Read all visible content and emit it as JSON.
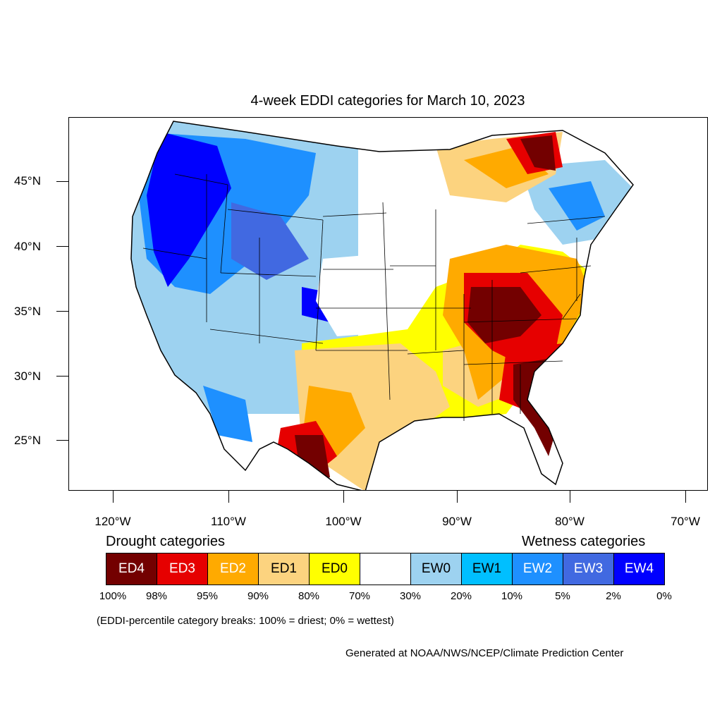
{
  "title": "4-week EDDI categories for March 10, 2023",
  "lat_labels": [
    "45°N",
    "40°N",
    "35°N",
    "30°N",
    "25°N"
  ],
  "lon_labels": [
    "120°W",
    "110°W",
    "100°W",
    "90°W",
    "80°W",
    "70°W"
  ],
  "legend": {
    "drought_heading": "Drought categories",
    "wetness_heading": "Wetness categories",
    "categories": [
      {
        "label": "ED4",
        "color": "#730000",
        "text_color": "#ffffff"
      },
      {
        "label": "ED3",
        "color": "#e60000",
        "text_color": "#ffffff"
      },
      {
        "label": "ED2",
        "color": "#ffaa00",
        "text_color": "#ffffff"
      },
      {
        "label": "ED1",
        "color": "#fcd37f",
        "text_color": "#000000"
      },
      {
        "label": "ED0",
        "color": "#ffff00",
        "text_color": "#000000"
      },
      {
        "label": "",
        "color": "#ffffff",
        "text_color": "#000000"
      },
      {
        "label": "EW0",
        "color": "#9dd2f0",
        "text_color": "#000000"
      },
      {
        "label": "EW1",
        "color": "#00bfff",
        "text_color": "#000000"
      },
      {
        "label": "EW2",
        "color": "#1e90ff",
        "text_color": "#ffffff"
      },
      {
        "label": "EW3",
        "color": "#4169e1",
        "text_color": "#ffffff"
      },
      {
        "label": "EW4",
        "color": "#0000ff",
        "text_color": "#ffffff"
      }
    ],
    "breaks": [
      "100%",
      "98%",
      "95%",
      "90%",
      "80%",
      "70%",
      "30%",
      "20%",
      "10%",
      "5%",
      "2%",
      "0%"
    ]
  },
  "note": "(EDDI-percentile category breaks: 100% = driest; 0% = wettest)",
  "credit": "Generated at NOAA/NWS/NCEP/Climate Prediction Center"
}
